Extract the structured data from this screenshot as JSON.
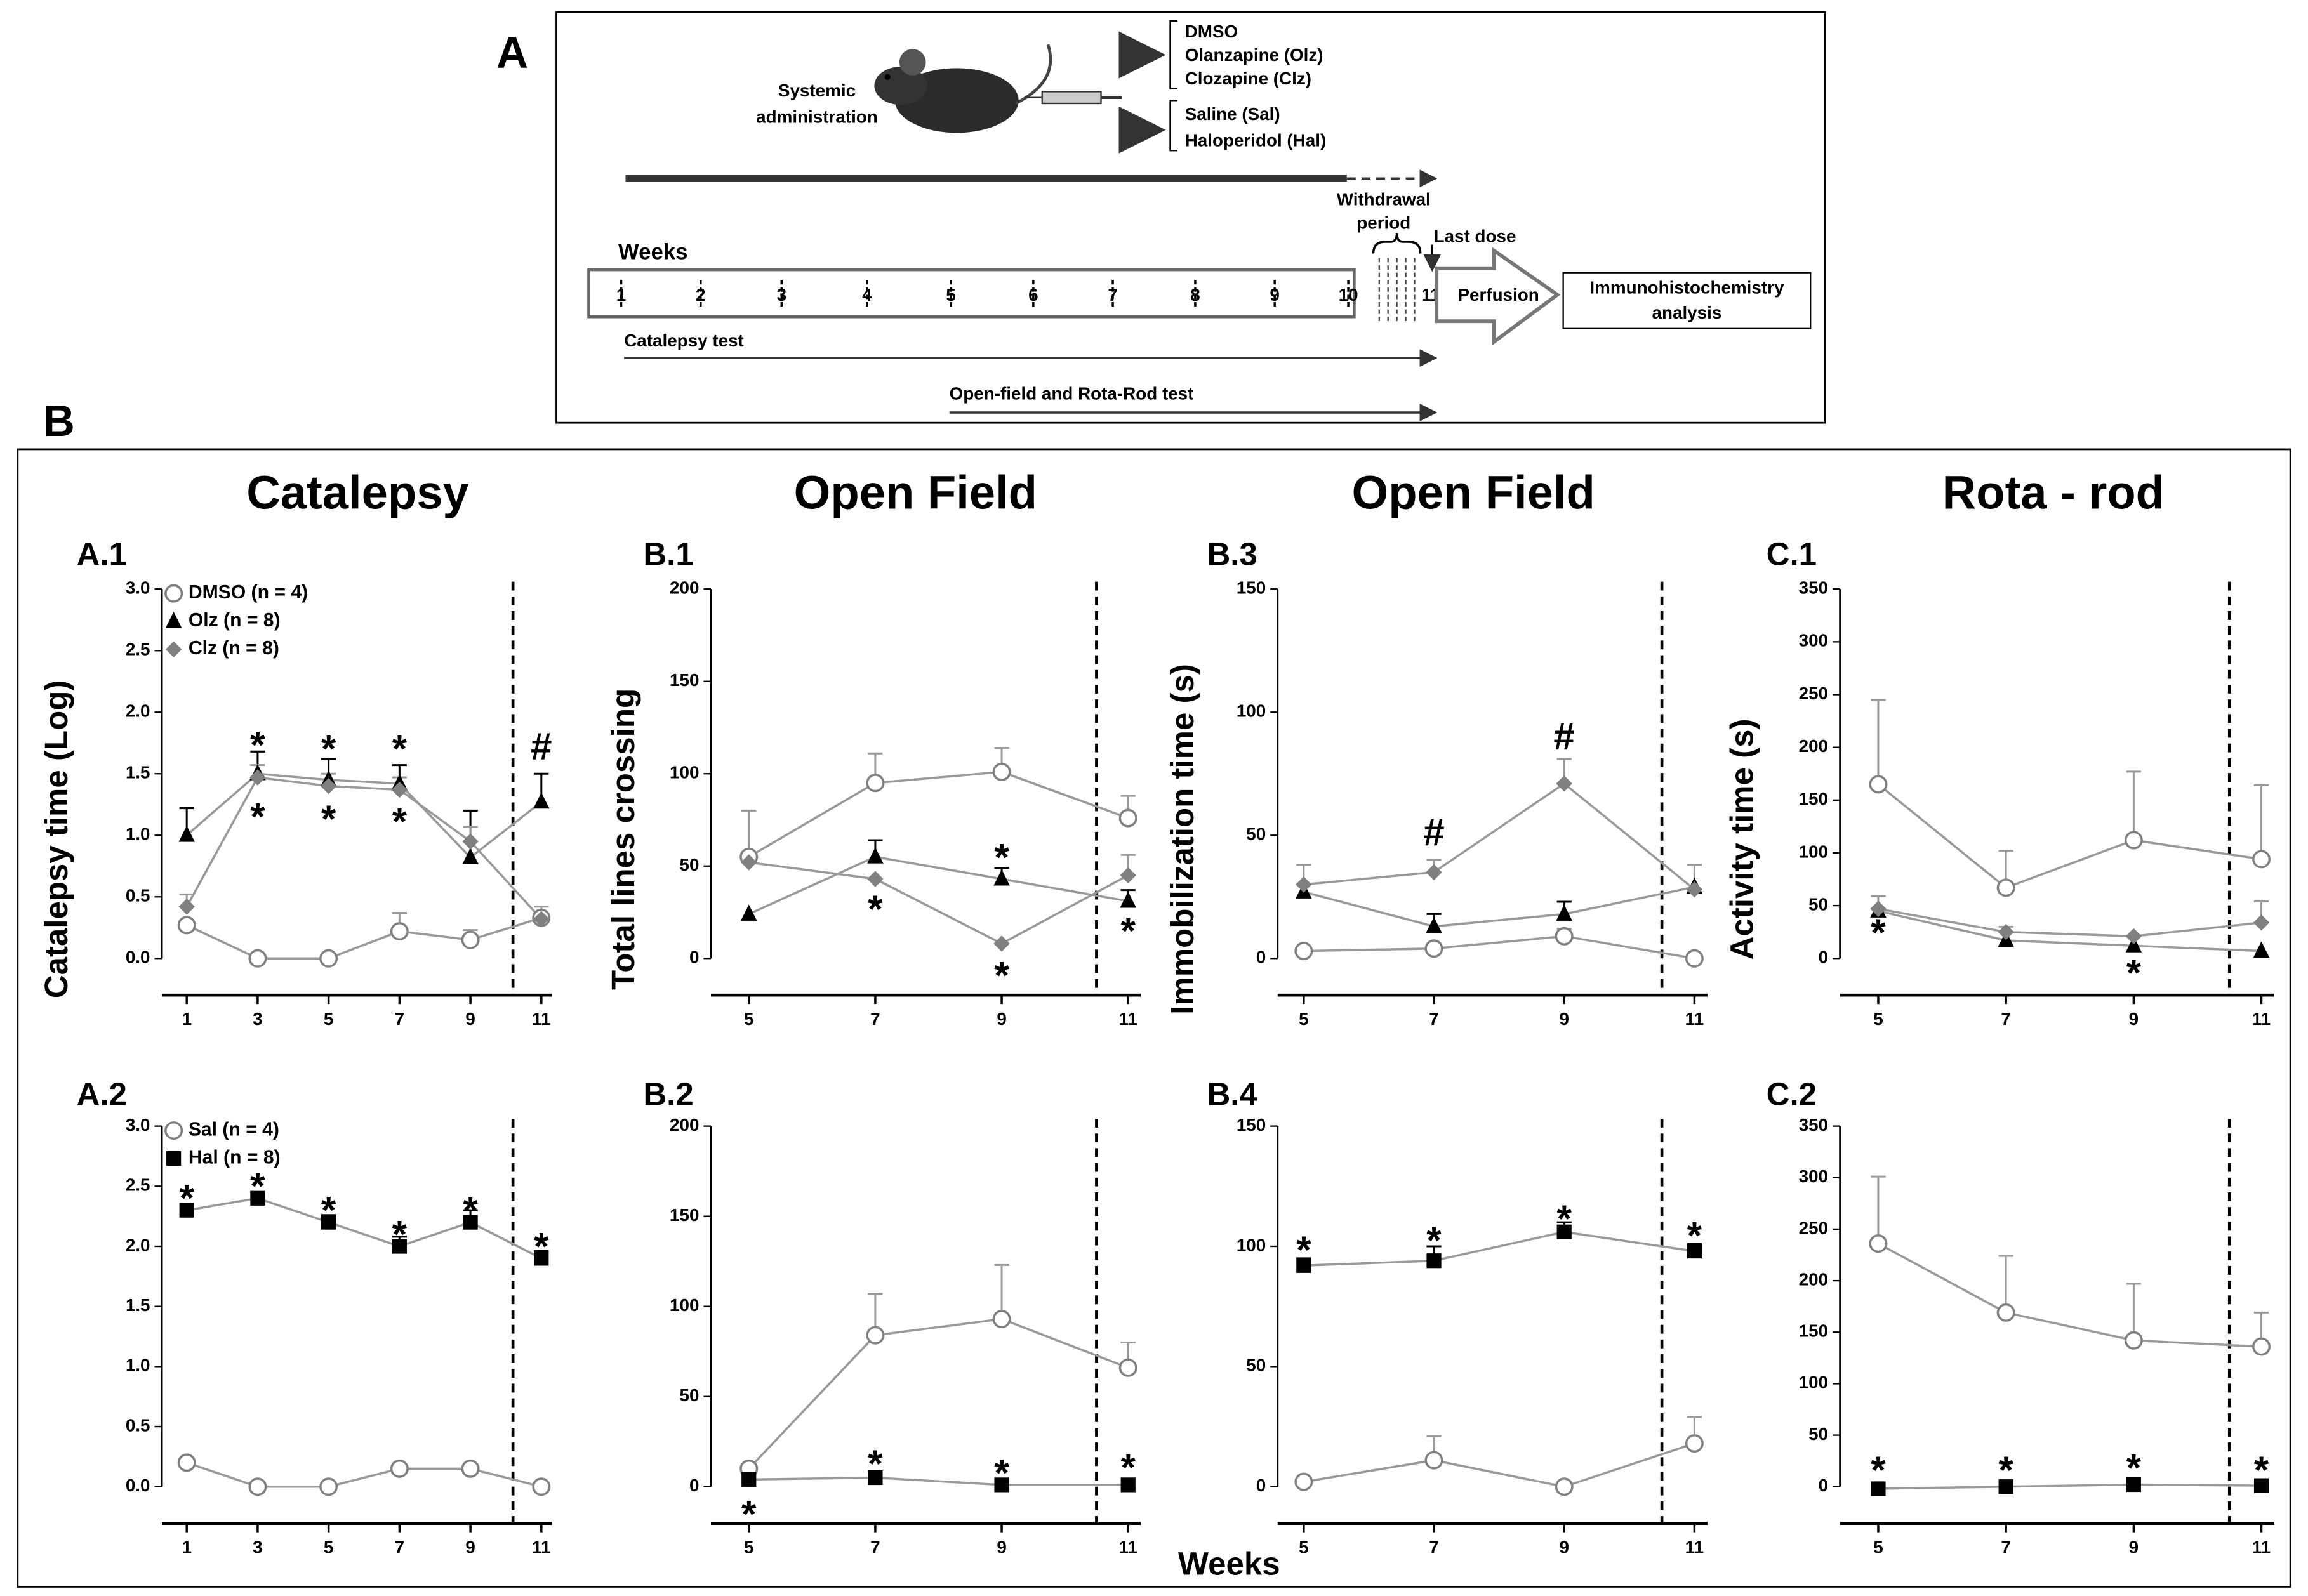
{
  "figure_label_a": "A",
  "figure_label_b": "B",
  "xlabel": "Weeks",
  "diagram": {
    "admin": [
      "Systemic",
      "administration"
    ],
    "group1": [
      "DMSO",
      "Olanzapine (Olz)",
      "Clozapine (Clz)"
    ],
    "group2": [
      "Saline (Sal)",
      "Haloperidol (Hal)"
    ],
    "weeks_label": "Weeks",
    "weeks": [
      1,
      2,
      3,
      4,
      5,
      6,
      7,
      8,
      9,
      10,
      11
    ],
    "withdrawal": [
      "Withdrawal",
      "period"
    ],
    "last_dose": "Last dose",
    "perfusion": "Perfusion",
    "analysis": [
      "Immunohistochemistry",
      "analysis"
    ],
    "catalepsy_test": "Catalepsy  test",
    "of_test": "Open-field  and  Rota-Rod test"
  },
  "chart_data": [
    {
      "type": "line",
      "title": "Catalepsy",
      "panel": "A.1",
      "ylabel": "Catalepsy  time (Log)",
      "x": [
        1,
        3,
        5,
        7,
        9,
        11
      ],
      "xlim": [
        0.3,
        11.3
      ],
      "xticks": [
        1,
        3,
        5,
        7,
        9,
        11
      ],
      "ylim": [
        0,
        3
      ],
      "yticks": [
        {
          "value": 0,
          "label": "0.0"
        },
        0.5,
        {
          "value": 1,
          "label": "1.0"
        },
        1.5,
        {
          "value": 2,
          "label": "2.0"
        },
        2.5,
        {
          "value": 3,
          "label": "3.0"
        }
      ],
      "vline": 10.2,
      "legend": true,
      "series": [
        {
          "name": "DMSO (n = 4)",
          "marker": "open-circle",
          "color": "#808080",
          "values": [
            0.27,
            0,
            0,
            0.22,
            0.15,
            0.33
          ],
          "errors": [
            0,
            0,
            0,
            0.15,
            0.08,
            0
          ]
        },
        {
          "name": "Olz (n = 8)",
          "marker": "triangle",
          "color": "#000000",
          "values": [
            1.0,
            1.5,
            1.45,
            1.42,
            0.82,
            1.27
          ],
          "errors": [
            0.22,
            0.18,
            0.17,
            0.15,
            0.38,
            0.23
          ]
        },
        {
          "name": "Clz (n = 8)",
          "marker": "diamond",
          "color": "#808080",
          "values": [
            0.42,
            1.47,
            1.4,
            1.37,
            0.95,
            0.32
          ],
          "errors": [
            0.1,
            0.1,
            0.1,
            0.1,
            0.12,
            0.1
          ]
        }
      ],
      "annotations": [
        {
          "text": "*",
          "x": 3,
          "y": 1.78
        },
        {
          "text": "*",
          "x": 3,
          "y": 1.2
        },
        {
          "text": "*",
          "x": 5,
          "y": 1.75
        },
        {
          "text": "*",
          "x": 5,
          "y": 1.18
        },
        {
          "text": "*",
          "x": 7,
          "y": 1.75
        },
        {
          "text": "*",
          "x": 7,
          "y": 1.16
        },
        {
          "text": "#",
          "x": 11,
          "y": 1.7
        }
      ]
    },
    {
      "type": "line",
      "panel": "A.2",
      "x": [
        1,
        3,
        5,
        7,
        9,
        11
      ],
      "xlim": [
        0.3,
        11.3
      ],
      "xticks": [
        1,
        3,
        5,
        7,
        9,
        11
      ],
      "ylim": [
        0,
        3
      ],
      "yticks": [
        {
          "value": 0,
          "label": "0.0"
        },
        0.5,
        {
          "value": 1,
          "label": "1.0"
        },
        1.5,
        {
          "value": 2,
          "label": "2.0"
        },
        2.5,
        {
          "value": 3,
          "label": "3.0"
        }
      ],
      "vline": 10.2,
      "legend": true,
      "series": [
        {
          "name": "Sal (n = 4)",
          "marker": "open-circle",
          "color": "#808080",
          "values": [
            0.2,
            0,
            0,
            0.15,
            0.15,
            0
          ],
          "errors": [
            0,
            0,
            0,
            0,
            0,
            0
          ]
        },
        {
          "name": "Hal (n = 8)",
          "marker": "square",
          "color": "#000000",
          "values": [
            2.3,
            2.4,
            2.2,
            2.0,
            2.2,
            1.9
          ],
          "errors": [
            0.05,
            0.05,
            0.06,
            0.08,
            0.1,
            0.06
          ]
        }
      ],
      "annotations": [
        {
          "text": "*",
          "x": 1,
          "y": 2.45
        },
        {
          "text": "*",
          "x": 3,
          "y": 2.55
        },
        {
          "text": "*",
          "x": 5,
          "y": 2.35
        },
        {
          "text": "*",
          "x": 7,
          "y": 2.15
        },
        {
          "text": "*",
          "x": 9,
          "y": 2.35
        },
        {
          "text": "*",
          "x": 11,
          "y": 2.05
        }
      ]
    },
    {
      "type": "line",
      "title": "Open Field",
      "panel": "B.1",
      "ylabel": "Total lines crossing",
      "x": [
        5,
        7,
        9,
        11
      ],
      "xlim": [
        4.4,
        11.2
      ],
      "xticks": [
        5,
        7,
        9,
        11
      ],
      "ylim": [
        0,
        200
      ],
      "yticks": [
        0,
        50,
        100,
        150,
        200
      ],
      "vline": 10.5,
      "legend": false,
      "series": [
        {
          "marker": "open-circle",
          "color": "#808080",
          "values": [
            55,
            95,
            101,
            76
          ],
          "errors": [
            25,
            16,
            13,
            12
          ]
        },
        {
          "marker": "triangle",
          "color": "#000000",
          "values": [
            24,
            55,
            43,
            31
          ],
          "errors": [
            0,
            9,
            6,
            6
          ]
        },
        {
          "marker": "diamond",
          "color": "#808080",
          "values": [
            52,
            43,
            8,
            45
          ],
          "errors": [
            0,
            0,
            0,
            11
          ]
        }
      ],
      "annotations": [
        {
          "text": "*",
          "x": 9,
          "y": 58
        },
        {
          "text": "*",
          "x": 7,
          "y": 30
        },
        {
          "text": "*",
          "x": 9,
          "y": -6
        },
        {
          "text": "*",
          "x": 11,
          "y": 18
        }
      ]
    },
    {
      "type": "line",
      "panel": "B.2",
      "x": [
        5,
        7,
        9,
        11
      ],
      "xlim": [
        4.4,
        11.2
      ],
      "xticks": [
        5,
        7,
        9,
        11
      ],
      "ylim": [
        0,
        200
      ],
      "yticks": [
        0,
        50,
        100,
        150,
        200
      ],
      "vline": 10.5,
      "legend": false,
      "series": [
        {
          "marker": "open-circle",
          "color": "#808080",
          "values": [
            10,
            84,
            93,
            66
          ],
          "errors": [
            0,
            23,
            30,
            14
          ]
        },
        {
          "marker": "square",
          "color": "#000000",
          "values": [
            4,
            5,
            1,
            1
          ],
          "errors": [
            0,
            0,
            0,
            0
          ]
        }
      ],
      "annotations": [
        {
          "text": "*",
          "x": 5,
          "y": -12
        },
        {
          "text": "*",
          "x": 7,
          "y": 16
        },
        {
          "text": "*",
          "x": 9,
          "y": 11
        },
        {
          "text": "*",
          "x": 11,
          "y": 14
        }
      ]
    },
    {
      "type": "line",
      "title": "Open Field",
      "panel": "B.3",
      "ylabel": "Immobilization  time (s)",
      "x": [
        5,
        7,
        9,
        11
      ],
      "xlim": [
        4.6,
        11.2
      ],
      "xticks": [
        5,
        7,
        9,
        11
      ],
      "ylim": [
        0,
        150
      ],
      "yticks": [
        0,
        50,
        100,
        150
      ],
      "vline": 10.5,
      "legend": false,
      "series": [
        {
          "marker": "open-circle",
          "color": "#808080",
          "values": [
            3,
            4,
            9,
            0
          ],
          "errors": [
            1,
            2,
            3,
            0
          ]
        },
        {
          "marker": "triangle",
          "color": "#000000",
          "values": [
            27,
            13,
            18,
            29
          ],
          "errors": [
            0,
            5,
            5,
            0
          ]
        },
        {
          "marker": "diamond",
          "color": "#808080",
          "values": [
            30,
            35,
            71,
            28
          ],
          "errors": [
            8,
            5,
            10,
            10
          ]
        }
      ],
      "annotations": [
        {
          "text": "#",
          "x": 7,
          "y": 50
        },
        {
          "text": "#",
          "x": 9,
          "y": 89
        }
      ]
    },
    {
      "type": "line",
      "panel": "B.4",
      "x": [
        5,
        7,
        9,
        11
      ],
      "xlim": [
        4.6,
        11.2
      ],
      "xticks": [
        5,
        7,
        9,
        11
      ],
      "ylim": [
        0,
        150
      ],
      "yticks": [
        0,
        50,
        100,
        150
      ],
      "vline": 10.5,
      "legend": false,
      "series": [
        {
          "marker": "square",
          "color": "#000000",
          "values": [
            92,
            94,
            106,
            98
          ],
          "errors": [
            3,
            6,
            4,
            3
          ]
        },
        {
          "marker": "open-circle",
          "color": "#808080",
          "values": [
            2,
            11,
            0,
            18
          ],
          "errors": [
            0,
            10,
            0,
            11
          ]
        }
      ],
      "annotations": [
        {
          "text": "*",
          "x": 5,
          "y": 101
        },
        {
          "text": "*",
          "x": 7,
          "y": 105
        },
        {
          "text": "*",
          "x": 9,
          "y": 114
        },
        {
          "text": "*",
          "x": 11,
          "y": 107
        }
      ]
    },
    {
      "type": "line",
      "title": "Rota - rod",
      "panel": "C.1",
      "ylabel": "Activity  time (s)",
      "x": [
        5,
        7,
        9,
        11
      ],
      "xlim": [
        4.4,
        11.2
      ],
      "xticks": [
        5,
        7,
        9,
        11
      ],
      "ylim": [
        0,
        350
      ],
      "yticks": [
        0,
        50,
        100,
        150,
        200,
        250,
        300,
        350
      ],
      "vline": 10.5,
      "legend": false,
      "series": [
        {
          "marker": "open-circle",
          "color": "#808080",
          "values": [
            165,
            67,
            112,
            94
          ],
          "errors": [
            80,
            35,
            65,
            70
          ]
        },
        {
          "marker": "triangle",
          "color": "#000000",
          "values": [
            45,
            17,
            12,
            7
          ],
          "errors": [
            0,
            0,
            0,
            0
          ]
        },
        {
          "marker": "diamond",
          "color": "#808080",
          "values": [
            47,
            25,
            21,
            34
          ],
          "errors": [
            12,
            5,
            0,
            20
          ]
        }
      ],
      "annotations": [
        {
          "text": "*",
          "x": 5,
          "y": 30
        },
        {
          "text": "*",
          "x": 9,
          "y": -8
        }
      ]
    },
    {
      "type": "line",
      "panel": "C.2",
      "x": [
        5,
        7,
        9,
        11
      ],
      "xlim": [
        4.4,
        11.2
      ],
      "xticks": [
        5,
        7,
        9,
        11
      ],
      "ylim": [
        0,
        350
      ],
      "yticks": [
        0,
        50,
        100,
        150,
        200,
        250,
        300,
        350
      ],
      "vline": 10.5,
      "legend": false,
      "series": [
        {
          "marker": "open-circle",
          "color": "#808080",
          "values": [
            236,
            169,
            142,
            136
          ],
          "errors": [
            65,
            55,
            55,
            33
          ]
        },
        {
          "marker": "square",
          "color": "#000000",
          "values": [
            -2,
            0,
            2,
            1
          ],
          "errors": [
            0,
            0,
            0,
            0
          ]
        }
      ],
      "annotations": [
        {
          "text": "*",
          "x": 5,
          "y": 22
        },
        {
          "text": "*",
          "x": 7,
          "y": 22
        },
        {
          "text": "*",
          "x": 9,
          "y": 24
        },
        {
          "text": "*",
          "x": 11,
          "y": 22
        }
      ]
    }
  ]
}
